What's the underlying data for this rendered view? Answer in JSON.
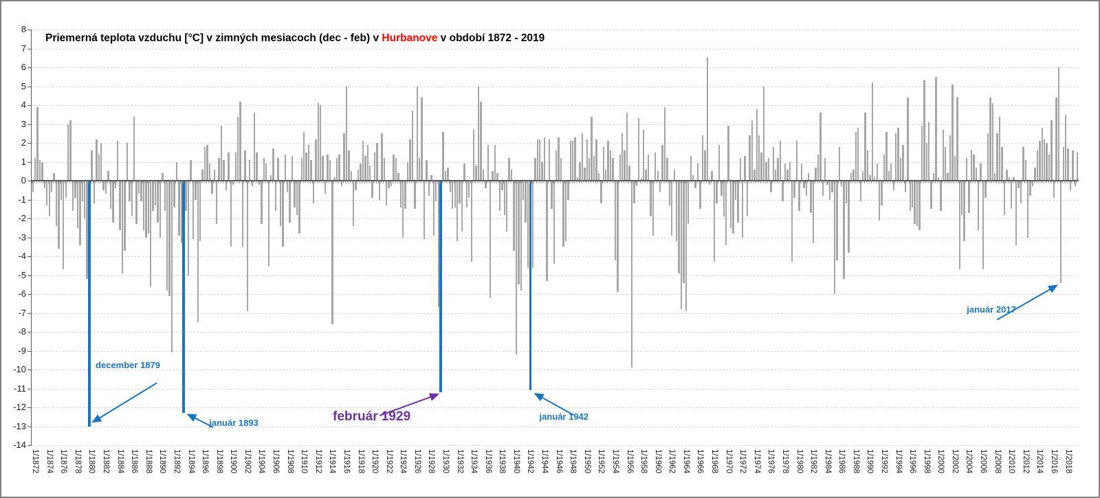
{
  "title": {
    "prefix": "Priemerná teplota vzduchu [°C] v zimných mesiacoch (dec - feb) v ",
    "highlight": "Hurbanove",
    "suffix": " v období 1872 - 2019",
    "highlight_color": "#FF0000"
  },
  "chart_data": {
    "type": "bar",
    "title": "Priemerná teplota vzduchu [°C] v zimných mesiacoch (dec - feb) v Hurbanove v období 1872 - 2019",
    "xlabel": "",
    "ylabel": "",
    "ylim": [
      -14,
      8
    ],
    "grid": "horizontal-dashed",
    "legend": "none",
    "y_ticks": [
      8,
      7,
      6,
      5,
      4,
      3,
      2,
      1,
      0,
      -1,
      -2,
      -3,
      -4,
      -5,
      -6,
      -7,
      -8,
      -9,
      -10,
      -11,
      -12,
      -13,
      -14
    ],
    "x_tick_labels": [
      "1/1872",
      "1/1874",
      "1/1876",
      "1/1878",
      "1/1880",
      "1/1882",
      "1/1884",
      "1/1886",
      "1/1888",
      "1/1890",
      "1/1892",
      "1/1894",
      "1/1896",
      "1/1898",
      "1/1900",
      "1/1902",
      "1/1904",
      "1/1906",
      "1/1908",
      "1/1910",
      "1/1912",
      "1/1914",
      "1/1916",
      "1/1918",
      "1/1920",
      "1/1922",
      "1/1924",
      "1/1926",
      "1/1928",
      "1/1930",
      "1/1932",
      "1/1934",
      "1/1936",
      "1/1938",
      "1/1940",
      "1/1942",
      "1/1944",
      "1/1946",
      "1/1948",
      "1/1950",
      "1/1952",
      "1/1954",
      "1/1956",
      "1/1958",
      "1/1960",
      "1/1962",
      "1/1964",
      "1/1966",
      "1/1968",
      "1/1970",
      "1/1972",
      "1/1974",
      "1/1976",
      "1/1978",
      "1/1980",
      "1/1982",
      "1/1984",
      "1/1986",
      "1/1988",
      "1/1990",
      "1/1992",
      "1/1994",
      "1/1996",
      "1/1998",
      "1/2000",
      "1/2002",
      "1/2004",
      "1/2006",
      "1/2008",
      "1/2010",
      "1/2012",
      "1/2014",
      "1/2016",
      "1/2018"
    ],
    "series_start_month": "12/1871",
    "series_end_month": "2/2019",
    "month_order_per_year": [
      "dec",
      "jan",
      "feb"
    ],
    "values": [
      -0.6,
      1.2,
      3.9,
      1.1,
      1.0,
      -0.4,
      -1.3,
      -1.9,
      -0.6,
      0.4,
      -2.4,
      -3.6,
      -1.0,
      -4.7,
      -0.9,
      3.0,
      3.2,
      -1.6,
      -0.9,
      -2.5,
      -3.4,
      -1.1,
      -2.0,
      -5.2,
      -13.0,
      1.6,
      -1.2,
      2.2,
      1.4,
      2.0,
      -0.5,
      -0.7,
      0.5,
      -1.5,
      -2.2,
      -0.4,
      2.1,
      -2.6,
      -4.9,
      -3.7,
      2.0,
      -1.1,
      -1.9,
      3.4,
      -2.3,
      -0.7,
      -1.1,
      -2.6,
      -3.0,
      -2.8,
      -5.6,
      -1.6,
      -1.3,
      -2.2,
      -3.0,
      0.4,
      -1.6,
      -5.8,
      -6.1,
      -9.1,
      -1.4,
      1.0,
      -2.9,
      -3.3,
      -12.3,
      -1.6,
      -5.0,
      1.1,
      -3.1,
      -1.0,
      -7.5,
      -3.2,
      0.6,
      1.8,
      1.9,
      0.9,
      -0.7,
      0.6,
      -2.3,
      1.2,
      2.9,
      1.1,
      -0.5,
      1.5,
      -3.5,
      -0.2,
      1.5,
      3.4,
      4.2,
      -3.5,
      1.6,
      -6.9,
      1.1,
      -0.3,
      3.6,
      1.5,
      -0.2,
      -2.3,
      1.2,
      0.9,
      -4.5,
      0.3,
      1.7,
      -1.6,
      1.2,
      -2.4,
      -3.5,
      1.4,
      -0.6,
      -2.2,
      1.3,
      -1.4,
      -1.8,
      -2.8,
      1.2,
      2.6,
      1.5,
      1.9,
      1.1,
      -1.2,
      2.2,
      4.1,
      4.0,
      1.3,
      -0.7,
      1.4,
      1.1,
      -7.6,
      0.2,
      1.2,
      1.4,
      -0.3,
      2.5,
      5.0,
      1.6,
      0.5,
      -2.4,
      -0.5,
      0.6,
      0.9,
      2.1,
      1.3,
      1.9,
      0.8,
      -0.9,
      1.5,
      2.0,
      -1.0,
      2.5,
      1.2,
      -1.3,
      -0.4,
      -0.3,
      1.4,
      1.2,
      0.4,
      -1.4,
      -3.0,
      -1.5,
      1.0,
      2.2,
      3.7,
      -1.5,
      5.0,
      1.2,
      4.4,
      -3.1,
      1.1,
      -0.8,
      0.3,
      -2.9,
      -1.1,
      -6.7,
      -11.2,
      2.6,
      0.5,
      0.7,
      -0.6,
      -1.5,
      -1.4,
      -3.2,
      -1.2,
      -2.7,
      0.9,
      -1.4,
      -0.9,
      -4.3,
      2.7,
      0.8,
      5.0,
      4.2,
      0.6,
      -0.4,
      1.9,
      -6.2,
      0.5,
      1.9,
      0.4,
      -1.6,
      -0.5,
      -1.8,
      -2.7,
      1.2,
      0.6,
      -3.7,
      -9.2,
      -5.5,
      -5.8,
      -1.0,
      -2.2,
      -4.6,
      -11.1,
      -4.6,
      1.2,
      2.2,
      2.2,
      1.0,
      2.3,
      -5.3,
      2.2,
      -1.5,
      -4.4,
      1.6,
      2.3,
      1.2,
      -3.5,
      -3.2,
      -1.0,
      2.1,
      2.1,
      2.3,
      0.2,
      1.0,
      2.5,
      0.7,
      2.2,
      1.2,
      3.4,
      1.3,
      2.2,
      0.4,
      -1.2,
      1.8,
      0.6,
      2.1,
      1.6,
      1.2,
      -4.2,
      -5.9,
      1.4,
      2.5,
      1.6,
      3.6,
      0.8,
      -9.9,
      -1.2,
      -0.3,
      3.3,
      0.1,
      2.7,
      0.6,
      1.4,
      -1.9,
      -2.9,
      1.5,
      0.5,
      -0.6,
      1.9,
      3.9,
      1.2,
      -1.3,
      -2.9,
      0.6,
      -3.2,
      -4.9,
      -6.8,
      -5.4,
      -6.9,
      -2.3,
      1.3,
      0.3,
      -0.4,
      0.9,
      -1.5,
      2.4,
      1.6,
      6.5,
      -0.2,
      0.5,
      -4.3,
      -1.2,
      1.9,
      -0.8,
      -1.9,
      -3.4,
      2.9,
      -2.5,
      -2.8,
      -1.0,
      -2.2,
      1.2,
      -3.0,
      1.3,
      -1.9,
      2.4,
      3.2,
      0.6,
      3.8,
      2.4,
      1.5,
      5.0,
      1.0,
      1.2,
      -0.6,
      1.8,
      0.6,
      1.2,
      2.1,
      -1.1,
      0.9,
      0.6,
      1.0,
      -4.3,
      -0.9,
      2.1,
      -1.6,
      0.9,
      -0.4,
      -0.8,
      0.4,
      -1.7,
      -3.3,
      0.7,
      1.4,
      3.6,
      -0.8,
      1.2,
      -0.2,
      -1.0,
      -0.6,
      -6.0,
      -4.2,
      1.8,
      -0.3,
      -5.2,
      -1.2,
      -3.8,
      0.4,
      0.6,
      2.6,
      2.8,
      -1.1,
      0.5,
      3.6,
      1.6,
      0.3,
      5.2,
      0.2,
      0.9,
      -2.1,
      -1.3,
      1.4,
      2.6,
      0.5,
      0.9,
      -0.5,
      2.5,
      2.8,
      1.2,
      1.9,
      -0.6,
      4.4,
      -1.6,
      -1.4,
      -2.3,
      -2.4,
      -2.6,
      2.9,
      5.3,
      2.0,
      3.1,
      -1.5,
      0.4,
      5.5,
      0.2,
      -1.6,
      2.7,
      1.8,
      0.4,
      2.4,
      5.1,
      1.3,
      4.4,
      -4.7,
      -1.8,
      -3.2,
      1.2,
      -1.7,
      1.6,
      1.4,
      0.7,
      -2.6,
      0.9,
      -4.7,
      -0.9,
      2.5,
      4.4,
      4.1,
      0.4,
      2.5,
      3.4,
      1.8,
      -1.8,
      0.6,
      0.2,
      -1.5,
      0.2,
      -3.4,
      -0.4,
      -1.2,
      1.8,
      1.1,
      -3.0,
      -0.8,
      -0.3,
      0.7,
      1.6,
      2.1,
      2.8,
      2.2,
      2.0,
      1.4,
      3.2,
      -0.9,
      4.4,
      6.0,
      -5.4,
      1.8,
      3.5,
      1.7,
      -0.5,
      1.6,
      -0.3,
      1.5
    ],
    "highlighted_indices": [
      24,
      64,
      173,
      211
    ],
    "annotations": [
      {
        "text": "december 1879",
        "target_index": 24,
        "value": -13.0,
        "color": "#1B75BC"
      },
      {
        "text": "január 1893",
        "target_index": 64,
        "value": -12.3,
        "color": "#1B75BC"
      },
      {
        "text": "február 1929",
        "target_index": 173,
        "value": -11.2,
        "color": "#7030A0"
      },
      {
        "text": "január 1942",
        "target_index": 211,
        "value": -11.1,
        "color": "#1B75BC"
      },
      {
        "text": "január 2017",
        "target_index": 436,
        "value": -5.4,
        "color": "#1B75BC"
      }
    ],
    "colors": {
      "bar": "#A6A6A6",
      "highlighted_bar": "#1C75BC",
      "annotation_blue": "#1B75BC",
      "annotation_purple": "#7030A0",
      "title_highlight_red": "#FF0000",
      "axis": "#595959",
      "gridline": "#D8D8D8"
    }
  }
}
